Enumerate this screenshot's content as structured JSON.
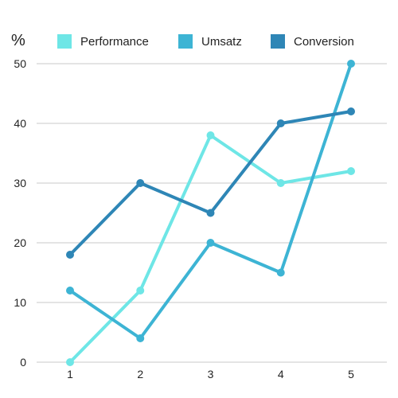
{
  "chart_data": {
    "type": "line",
    "y_unit": "%",
    "x": [
      1,
      2,
      3,
      4,
      5
    ],
    "x_tick_labels": [
      "1",
      "2",
      "3",
      "4",
      "5"
    ],
    "y_ticks": [
      0,
      10,
      20,
      30,
      40,
      50
    ],
    "y_tick_labels": [
      "0",
      "10",
      "20",
      "30",
      "40",
      "50"
    ],
    "ylim": [
      0,
      50
    ],
    "grid": "horizontal",
    "legend_position": "top",
    "series": [
      {
        "name": "Performance",
        "color": "#6ee6e6",
        "values": [
          0,
          12,
          38,
          30,
          32
        ]
      },
      {
        "name": "Umsatz",
        "color": "#3db4d4",
        "values": [
          12,
          4,
          20,
          15,
          50
        ]
      },
      {
        "name": "Conversion",
        "color": "#2e86b6",
        "values": [
          18,
          30,
          25,
          40,
          42
        ]
      }
    ]
  }
}
